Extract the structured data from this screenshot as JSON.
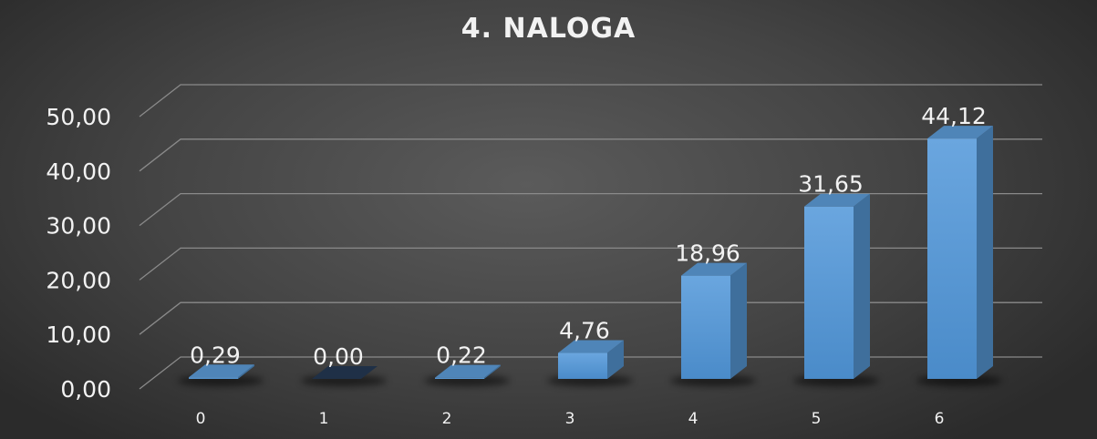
{
  "chart_data": {
    "type": "bar",
    "title": "4. NALOGA",
    "categories": [
      "0",
      "1",
      "2",
      "3",
      "4",
      "5",
      "6"
    ],
    "values": [
      0.29,
      0.0,
      0.22,
      4.76,
      18.96,
      31.65,
      44.12
    ],
    "data_labels": [
      "0,29",
      "0,00",
      "0,22",
      "4,76",
      "18,96",
      "31,65",
      "44,12"
    ],
    "y_ticks": [
      "0,00",
      "10,00",
      "20,00",
      "30,00",
      "40,00",
      "50,00"
    ],
    "ylim": [
      0,
      50
    ],
    "grid": true,
    "legend": "none",
    "style": "3d-column",
    "colors": {
      "bar_front": "#5b9bd5",
      "bar_side": "#3f6f9c",
      "bar_top": "#4f85b8",
      "gridline": "#8a8a8a",
      "text": "#f2f2f2"
    }
  }
}
